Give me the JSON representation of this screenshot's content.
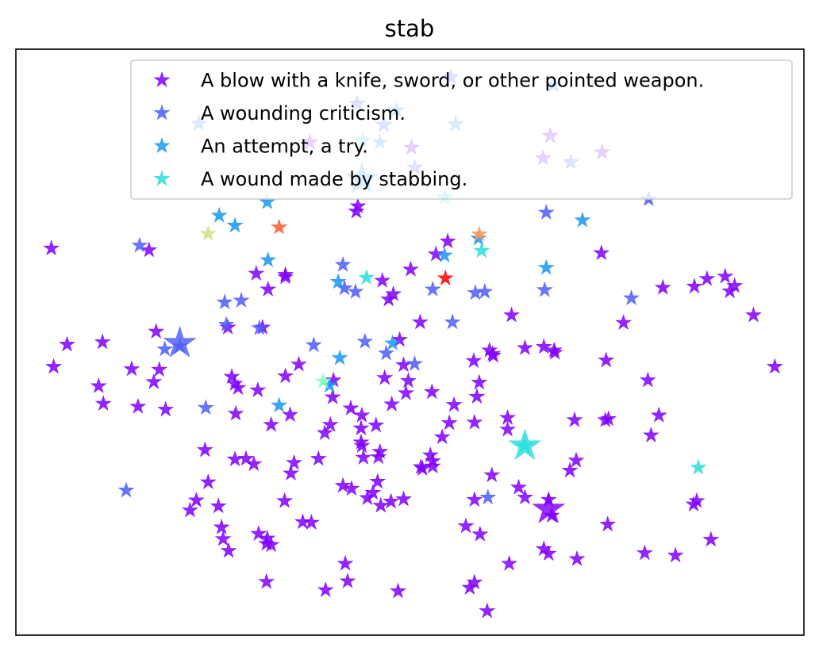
{
  "chart_data": {
    "type": "scatter",
    "title": "stab",
    "xlabel": "",
    "ylabel": "",
    "xticks": false,
    "yticks": false,
    "grid": false,
    "legend_position": "top-right",
    "marker": "star",
    "xlim": [
      0,
      100
    ],
    "ylim": [
      0,
      100
    ],
    "series": [
      {
        "name": "A blow with a knife, sword, or other pointed weapon.",
        "color": "#8000ff",
        "points": [
          [
            4.5,
            66
          ],
          [
            6.5,
            49.6
          ],
          [
            4.8,
            45.8
          ],
          [
            11,
            50
          ],
          [
            10.5,
            42.5
          ],
          [
            11.1,
            39.5
          ],
          [
            14.7,
            45.4
          ],
          [
            15.5,
            39
          ],
          [
            17.8,
            51.8
          ],
          [
            18.2,
            45.3
          ],
          [
            17.5,
            43.2
          ],
          [
            19,
            38.5
          ],
          [
            16.9,
            65.7
          ],
          [
            24,
            31.6
          ],
          [
            22.9,
            23
          ],
          [
            25.7,
            22
          ],
          [
            24.4,
            26.1
          ],
          [
            26.1,
            18.4
          ],
          [
            22.1,
            21.3
          ],
          [
            27.8,
            42.9
          ],
          [
            27.4,
            44.1
          ],
          [
            28.2,
            42.2
          ],
          [
            30.7,
            41.8
          ],
          [
            27.9,
            37.8
          ],
          [
            30.2,
            29.2
          ],
          [
            27.8,
            30
          ],
          [
            29.2,
            30.1
          ],
          [
            26.9,
            52.5
          ],
          [
            31.3,
            52.5
          ],
          [
            34.2,
            61.5
          ],
          [
            32.4,
            35.9
          ],
          [
            34.8,
            37.6
          ],
          [
            35.9,
            46.2
          ],
          [
            34.2,
            44.2
          ],
          [
            34.9,
            27.6
          ],
          [
            31.9,
            16.5
          ],
          [
            31.8,
            15.6
          ],
          [
            36.4,
            19.3
          ],
          [
            37.5,
            19.2
          ],
          [
            38.4,
            30.1
          ],
          [
            39.9,
            35.9
          ],
          [
            40.2,
            40.6
          ],
          [
            42.5,
            38.7
          ],
          [
            43.9,
            37.5
          ],
          [
            43.8,
            35.3
          ],
          [
            43.8,
            32.9
          ],
          [
            42.6,
            25
          ],
          [
            41.5,
            25.5
          ],
          [
            40.3,
            43.5
          ],
          [
            45.7,
            35.8
          ],
          [
            46.8,
            43.9
          ],
          [
            47.3,
            57.3
          ],
          [
            47.9,
            58.2
          ],
          [
            49.5,
            41.3
          ],
          [
            49.8,
            43.4
          ],
          [
            48.7,
            50.4
          ],
          [
            51.3,
            53.4
          ],
          [
            46.2,
            31.3
          ],
          [
            46,
            30.4
          ],
          [
            45.9,
            26.2
          ],
          [
            45.3,
            24.3
          ],
          [
            44.6,
            23.4
          ],
          [
            41.8,
            12.2
          ],
          [
            46.3,
            22.1
          ],
          [
            47.6,
            22.8
          ],
          [
            49.2,
            23.2
          ],
          [
            51.4,
            28.7
          ],
          [
            52.9,
            28.8
          ],
          [
            52.6,
            30.7
          ],
          [
            52.9,
            29.7
          ],
          [
            51.6,
            28.4
          ],
          [
            54.1,
            33.8
          ],
          [
            55.6,
            39.3
          ],
          [
            58.1,
            46.8
          ],
          [
            58.8,
            43.1
          ],
          [
            58.5,
            40.7
          ],
          [
            60.6,
            47.7
          ],
          [
            58.2,
            36.3
          ],
          [
            60.1,
            48.6
          ],
          [
            62.9,
            54.6
          ],
          [
            62.4,
            37.1
          ],
          [
            62.4,
            35.1
          ],
          [
            60.4,
            27.3
          ],
          [
            58.2,
            23.1
          ],
          [
            57.1,
            18.6
          ],
          [
            58.9,
            17.2
          ],
          [
            57.6,
            8.1
          ],
          [
            50.1,
            62.4
          ],
          [
            49.2,
            46.1
          ],
          [
            46.5,
            60.5
          ],
          [
            53.3,
            65
          ],
          [
            54.8,
            67.2
          ],
          [
            59.8,
            4.1
          ],
          [
            58.2,
            9
          ],
          [
            63.8,
            25.2
          ],
          [
            64.6,
            23.5
          ],
          [
            67.6,
            23.1
          ],
          [
            68.4,
            48.2
          ],
          [
            68.3,
            48.6
          ],
          [
            70.9,
            36.7
          ],
          [
            71.1,
            29.8
          ],
          [
            70.3,
            28.1
          ],
          [
            68,
            20.4
          ],
          [
            67,
            14.7
          ],
          [
            67.6,
            13.9
          ],
          [
            71.2,
            13
          ],
          [
            62.6,
            12.2
          ],
          [
            75.2,
            36.9
          ],
          [
            74.9,
            46.9
          ],
          [
            74.3,
            65.2
          ],
          [
            77.1,
            53.3
          ],
          [
            80.6,
            34.1
          ],
          [
            82.1,
            59.3
          ],
          [
            86.1,
            59.5
          ],
          [
            87.7,
            60.8
          ],
          [
            90,
            61.2
          ],
          [
            91.2,
            59.6
          ],
          [
            90.6,
            58.7
          ],
          [
            75.1,
            18.9
          ],
          [
            74.8,
            36.7
          ],
          [
            80.2,
            43.5
          ],
          [
            81.6,
            37.5
          ],
          [
            93.6,
            54.6
          ],
          [
            96.3,
            45.8
          ],
          [
            86.4,
            22.9
          ],
          [
            86,
            22.3
          ],
          [
            88.2,
            16.3
          ],
          [
            83.7,
            13.6
          ],
          [
            79.8,
            14
          ],
          [
            39.3,
            7.7
          ],
          [
            42.1,
            9.2
          ],
          [
            48.5,
            7.5
          ],
          [
            31.8,
            9.1
          ],
          [
            43.2,
            72.3
          ],
          [
            43.4,
            73.2
          ],
          [
            34.2,
            61.1
          ],
          [
            30.5,
            61.7
          ],
          [
            32,
            59
          ],
          [
            47.7,
            39.4
          ],
          [
            43.9,
            32.3
          ],
          [
            44.1,
            30.3
          ],
          [
            39.2,
            34.5
          ],
          [
            52.8,
            41.5
          ],
          [
            55,
            36.2
          ],
          [
            64.6,
            49
          ],
          [
            67,
            49.2
          ],
          [
            60.5,
            48
          ],
          [
            35.3,
            29.4
          ],
          [
            34.1,
            22.9
          ],
          [
            32.4,
            15.4
          ],
          [
            30.8,
            17.3
          ],
          [
            26.3,
            16.4
          ],
          [
            27,
            14.4
          ]
        ]
      },
      {
        "name": "A wounding criticism.",
        "color": "#4f5dfd",
        "points": [
          [
            20.8,
            49.3
          ],
          [
            18.9,
            48.8
          ],
          [
            15.7,
            66.5
          ],
          [
            26.5,
            56.8
          ],
          [
            28.6,
            57.1
          ],
          [
            26.7,
            53
          ],
          [
            30.9,
            52.4
          ],
          [
            41.5,
            63.2
          ],
          [
            41.7,
            59.2
          ],
          [
            43.1,
            58.6
          ],
          [
            37.8,
            49.5
          ],
          [
            44.3,
            50.1
          ],
          [
            50.6,
            46.3
          ],
          [
            52.9,
            59
          ],
          [
            55.4,
            53.4
          ],
          [
            58.3,
            58.4
          ],
          [
            59.5,
            58.6
          ],
          [
            67.1,
            58.9
          ],
          [
            67.3,
            72.1
          ],
          [
            78.1,
            57.5
          ],
          [
            80.3,
            74.4
          ],
          [
            59.9,
            23.5
          ],
          [
            24.1,
            38.8
          ],
          [
            14,
            24.7
          ],
          [
            47,
            48.1
          ]
        ]
      },
      {
        "name": "An attempt, a try.",
        "color": "#1996f3",
        "points": [
          [
            25.8,
            71.6
          ],
          [
            27.8,
            69.9
          ],
          [
            31.9,
            73.9
          ],
          [
            32,
            64
          ],
          [
            40.9,
            60.3
          ],
          [
            41.1,
            47.3
          ],
          [
            39.8,
            42.6
          ],
          [
            33.4,
            39.2
          ],
          [
            47.8,
            49.8
          ],
          [
            54.4,
            64.8
          ],
          [
            58.7,
            67.7
          ],
          [
            67.3,
            62.7
          ],
          [
            71.9,
            70.8
          ],
          [
            46.2,
            84.1
          ],
          [
            48.3,
            89.6
          ]
        ]
      },
      {
        "name": "A wound made by stabbing.",
        "color": "#2adddd",
        "points": [
          [
            44.5,
            61
          ],
          [
            59.1,
            65.6
          ],
          [
            86.6,
            28.6
          ],
          [
            64.6,
            32.3
          ],
          [
            44,
            84.4
          ]
        ]
      },
      {
        "name": "",
        "color": "#80ffb4",
        "points": [
          [
            39,
            43.3
          ]
        ]
      },
      {
        "name": "",
        "color": "#d4dd80",
        "points": [
          [
            24.4,
            68.5
          ]
        ]
      },
      {
        "name": "",
        "color": "#ff954e",
        "points": [
          [
            58.8,
            68.4
          ]
        ]
      },
      {
        "name": "",
        "color": "#ff5a2e",
        "points": [
          [
            33.4,
            69.6
          ]
        ]
      },
      {
        "name": "",
        "color": "#ff0000",
        "points": [
          [
            54.5,
            60.9
          ]
        ]
      }
    ],
    "highlighted_points": [
      {
        "color": "#4f5dfd",
        "x": 20.8,
        "y": 49.8
      },
      {
        "color": "#2adddd",
        "x": 64.6,
        "y": 32.3
      },
      {
        "color": "#8000ff",
        "x": 67.6,
        "y": 21.5
      },
      {
        "color": "#1996f3",
        "x": 43.9,
        "y": 77.8
      }
    ],
    "faded_points": [
      {
        "color": "#4f5dfd",
        "x": 55.2,
        "y": 95.2
      },
      {
        "color": "#1996f3",
        "x": 55.8,
        "y": 87.2
      },
      {
        "color": "#4f5dfd",
        "x": 43.3,
        "y": 90.7
      },
      {
        "color": "#1996f3",
        "x": 68.2,
        "y": 93.9
      },
      {
        "color": "#8000ff",
        "x": 67.8,
        "y": 85.2
      },
      {
        "color": "#8000ff",
        "x": 66.9,
        "y": 81.4
      },
      {
        "color": "#4f5dfd",
        "x": 70.4,
        "y": 80.7
      },
      {
        "color": "#8000ff",
        "x": 74.4,
        "y": 82.4
      },
      {
        "color": "#1996f3",
        "x": 23.2,
        "y": 87.3
      },
      {
        "color": "#4f5dfd",
        "x": 46.7,
        "y": 87.1
      },
      {
        "color": "#8000ff",
        "x": 50.2,
        "y": 83.2
      },
      {
        "color": "#4f5dfd",
        "x": 50.6,
        "y": 79.8
      },
      {
        "color": "#8000ff",
        "x": 37.3,
        "y": 84.1
      },
      {
        "color": "#2adddd",
        "x": 54.4,
        "y": 74.7
      }
    ]
  }
}
